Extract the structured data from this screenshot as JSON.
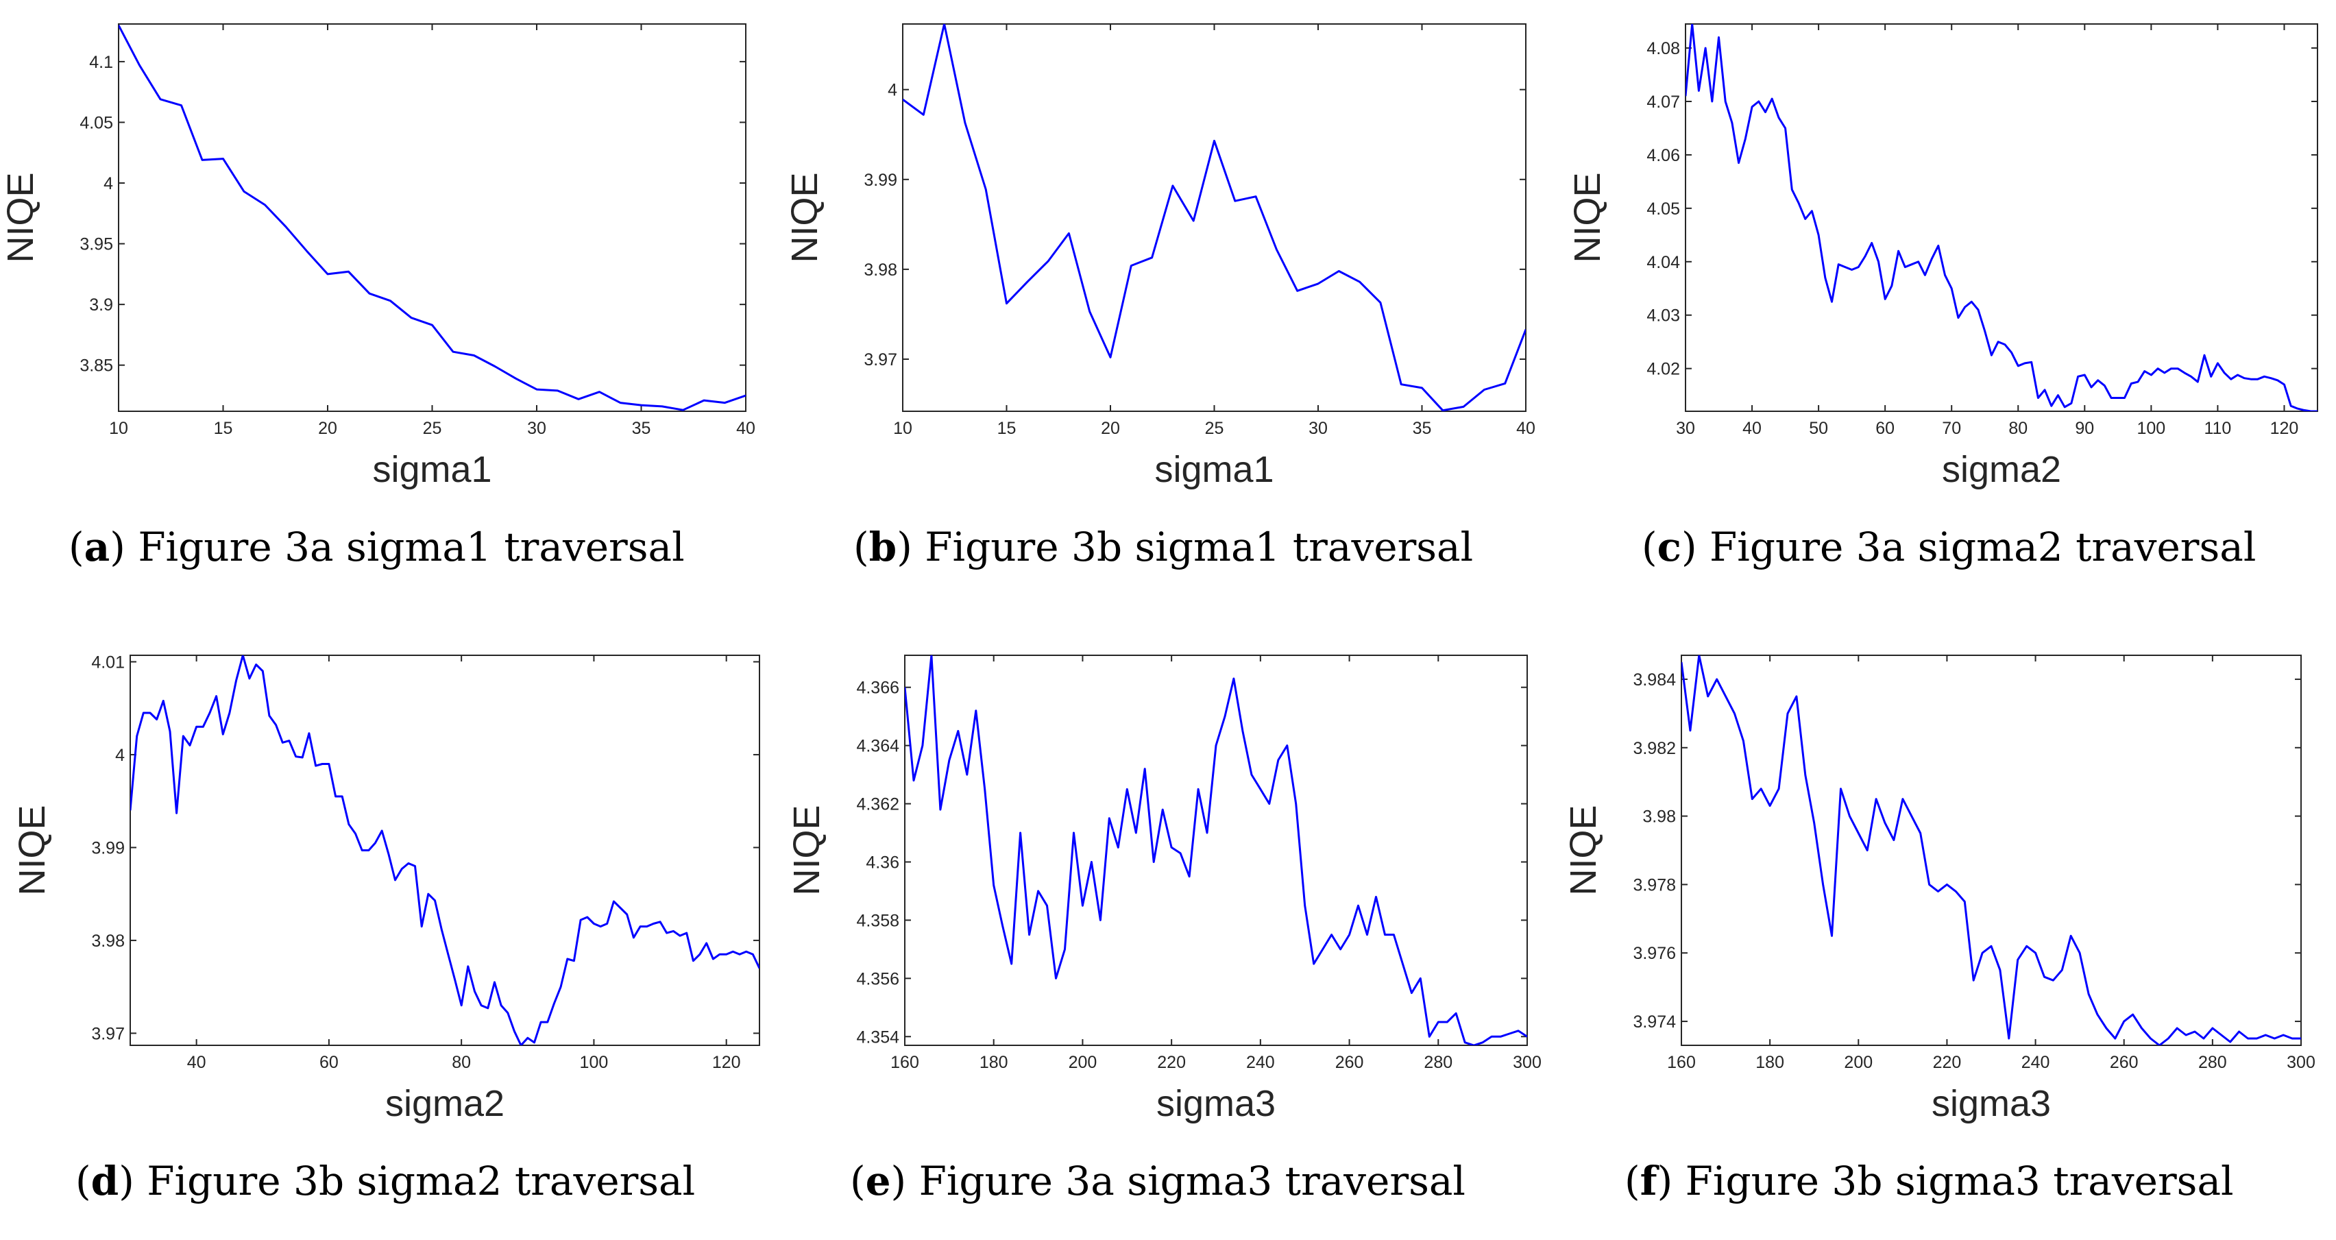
{
  "chart_data": [
    {
      "type": "line",
      "id": "a",
      "caption_letter": "a",
      "caption_text": "Figure 3a sigma1 traversal",
      "xlabel": "sigma1",
      "ylabel": "NIQE",
      "xlim": [
        10,
        40
      ],
      "ylim": [
        3.812,
        4.131
      ],
      "xticks": [
        "10",
        "15",
        "20",
        "25",
        "30",
        "35",
        "40"
      ],
      "yticks": [
        "3.85",
        "3.9",
        "3.95",
        "4",
        "4.05",
        "4.1"
      ],
      "color": "#0000ff",
      "series": [
        {
          "name": "NIQE",
          "x": [
            10,
            11,
            12,
            13,
            14,
            15,
            16,
            17,
            18,
            19,
            20,
            21,
            22,
            23,
            24,
            25,
            26,
            27,
            28,
            29,
            30,
            31,
            32,
            33,
            34,
            35,
            36,
            37,
            38,
            39,
            40
          ],
          "y": [
            4.13,
            4.097,
            4.069,
            4.064,
            4.019,
            4.02,
            3.993,
            3.982,
            3.964,
            3.944,
            3.925,
            3.927,
            3.909,
            3.903,
            3.889,
            3.883,
            3.861,
            3.858,
            3.849,
            3.839,
            3.83,
            3.829,
            3.822,
            3.828,
            3.819,
            3.817,
            3.816,
            3.813,
            3.821,
            3.819,
            3.825
          ]
        }
      ]
    },
    {
      "type": "line",
      "id": "b",
      "caption_letter": "b",
      "caption_text": "Figure 3b sigma1 traversal",
      "xlabel": "sigma1",
      "ylabel": "NIQE",
      "xlim": [
        10,
        40
      ],
      "ylim": [
        3.9642,
        4.0073
      ],
      "xticks": [
        "10",
        "15",
        "20",
        "25",
        "30",
        "35",
        "40"
      ],
      "yticks": [
        "3.97",
        "3.98",
        "3.99",
        "4"
      ],
      "color": "#0000ff",
      "series": [
        {
          "name": "NIQE",
          "x": [
            10,
            11,
            12,
            13,
            14,
            15,
            16,
            17,
            18,
            19,
            20,
            21,
            22,
            23,
            24,
            25,
            26,
            27,
            28,
            29,
            30,
            31,
            32,
            33,
            34,
            35,
            36,
            37,
            38,
            39,
            40
          ],
          "y": [
            3.9989,
            3.9972,
            4.0073,
            3.9963,
            3.9889,
            3.9762,
            3.9786,
            3.9809,
            3.984,
            3.9753,
            3.9702,
            3.9804,
            3.9813,
            3.9893,
            3.9854,
            3.9943,
            3.9876,
            3.9881,
            3.9822,
            3.9776,
            3.9784,
            3.9798,
            3.9786,
            3.9763,
            3.9672,
            3.9668,
            3.9643,
            3.9647,
            3.9666,
            3.9673,
            3.9733
          ]
        }
      ]
    },
    {
      "type": "line",
      "id": "c",
      "caption_letter": "c",
      "caption_text": "Figure 3a sigma2 traversal",
      "xlabel": "sigma2",
      "ylabel": "NIQE",
      "xlim": [
        30,
        125
      ],
      "ylim": [
        4.012,
        4.0845
      ],
      "xticks": [
        "30",
        "40",
        "50",
        "60",
        "70",
        "80",
        "90",
        "100",
        "110",
        "120"
      ],
      "yticks": [
        "4.02",
        "4.03",
        "4.04",
        "4.05",
        "4.06",
        "4.07",
        "4.08"
      ],
      "color": "#0000ff",
      "series": [
        {
          "name": "NIQE",
          "x": [
            30,
            31,
            32,
            33,
            34,
            35,
            36,
            37,
            38,
            39,
            40,
            41,
            42,
            43,
            44,
            45,
            46,
            47,
            48,
            49,
            50,
            51,
            52,
            53,
            54,
            55,
            56,
            57,
            58,
            59,
            60,
            61,
            62,
            63,
            64,
            65,
            66,
            67,
            68,
            69,
            70,
            71,
            72,
            73,
            74,
            75,
            76,
            77,
            78,
            79,
            80,
            81,
            82,
            83,
            84,
            85,
            86,
            87,
            88,
            89,
            90,
            91,
            92,
            93,
            94,
            95,
            96,
            97,
            98,
            99,
            100,
            101,
            102,
            103,
            104,
            105,
            106,
            107,
            108,
            109,
            110,
            111,
            112,
            113,
            114,
            115,
            116,
            117,
            118,
            119,
            120,
            121,
            122,
            123,
            124,
            125
          ],
          "y": [
            4.071,
            4.0845,
            4.072,
            4.08,
            4.07,
            4.082,
            4.07,
            4.066,
            4.0585,
            4.063,
            4.069,
            4.07,
            4.068,
            4.0705,
            4.067,
            4.065,
            4.0535,
            4.051,
            4.048,
            4.0495,
            4.045,
            4.037,
            4.0325,
            4.0395,
            4.039,
            4.0385,
            4.039,
            4.041,
            4.0435,
            4.04,
            4.033,
            4.0355,
            4.042,
            4.039,
            4.0395,
            4.04,
            4.0375,
            4.0405,
            4.043,
            4.0375,
            4.035,
            4.0295,
            4.0315,
            4.0325,
            4.031,
            4.027,
            4.0225,
            4.025,
            4.0245,
            4.023,
            4.0205,
            4.021,
            4.0212,
            4.0145,
            4.016,
            4.013,
            4.015,
            4.0128,
            4.0135,
            4.0185,
            4.0188,
            4.0165,
            4.0178,
            4.0168,
            4.0145,
            4.0145,
            4.0145,
            4.0172,
            4.0175,
            4.0195,
            4.0188,
            4.02,
            4.0192,
            4.02,
            4.02,
            4.0192,
            4.0185,
            4.0175,
            4.0225,
            4.0185,
            4.021,
            4.0192,
            4.018,
            4.0188,
            4.0182,
            4.018,
            4.018,
            4.0185,
            4.0182,
            4.0178,
            4.017,
            4.013,
            4.0125,
            4.0122,
            4.012,
            4.012
          ]
        }
      ]
    },
    {
      "type": "line",
      "id": "d",
      "caption_letter": "d",
      "caption_text": "Figure 3b sigma2 traversal",
      "xlabel": "sigma2",
      "ylabel": "NIQE",
      "xlim": [
        30,
        125
      ],
      "ylim": [
        3.9687,
        4.0107
      ],
      "xticks": [
        "40",
        "60",
        "80",
        "100",
        "120"
      ],
      "yticks": [
        "3.97",
        "3.98",
        "3.99",
        "4",
        "4.01"
      ],
      "color": "#0000ff",
      "series": [
        {
          "name": "NIQE",
          "x": [
            30,
            31,
            32,
            33,
            34,
            35,
            36,
            37,
            38,
            39,
            40,
            41,
            42,
            43,
            44,
            45,
            46,
            47,
            48,
            49,
            50,
            51,
            52,
            53,
            54,
            55,
            56,
            57,
            58,
            59,
            60,
            61,
            62,
            63,
            64,
            65,
            66,
            67,
            68,
            69,
            70,
            71,
            72,
            73,
            74,
            75,
            76,
            77,
            78,
            79,
            80,
            81,
            82,
            83,
            84,
            85,
            86,
            87,
            88,
            89,
            90,
            91,
            92,
            93,
            94,
            95,
            96,
            97,
            98,
            99,
            100,
            101,
            102,
            103,
            104,
            105,
            106,
            107,
            108,
            109,
            110,
            111,
            112,
            113,
            114,
            115,
            116,
            117,
            118,
            119,
            120,
            121,
            122,
            123,
            124,
            125
          ],
          "y": [
            3.994,
            4.002,
            4.0045,
            4.0045,
            4.0038,
            4.0058,
            4.0025,
            3.9937,
            4.002,
            4.001,
            4.003,
            4.003,
            4.0045,
            4.0063,
            4.0022,
            4.0045,
            4.008,
            4.0107,
            4.0082,
            4.0097,
            4.009,
            4.0042,
            4.0032,
            4.0013,
            4.0015,
            3.9998,
            3.9997,
            4.0023,
            3.9988,
            3.999,
            3.999,
            3.9955,
            3.9955,
            3.9925,
            3.9915,
            3.9897,
            3.9897,
            3.9905,
            3.9918,
            3.9893,
            3.9865,
            3.9877,
            3.9883,
            3.988,
            3.9815,
            3.985,
            3.9843,
            3.9812,
            3.9785,
            3.9758,
            3.973,
            3.9772,
            3.9745,
            3.973,
            3.9727,
            3.9755,
            3.973,
            3.9722,
            3.9702,
            3.9687,
            3.9695,
            3.969,
            3.9712,
            3.9712,
            3.9732,
            3.975,
            3.978,
            3.9778,
            3.9822,
            3.9825,
            3.9818,
            3.9815,
            3.9818,
            3.9842,
            3.9835,
            3.9828,
            3.9803,
            3.9815,
            3.9815,
            3.9818,
            3.982,
            3.9808,
            3.981,
            3.9805,
            3.9808,
            3.9778,
            3.9785,
            3.9797,
            3.978,
            3.9785,
            3.9785,
            3.9788,
            3.9785,
            3.9788,
            3.9785,
            3.977
          ]
        }
      ]
    },
    {
      "type": "line",
      "id": "e",
      "caption_letter": "e",
      "caption_text": "Figure 3a sigma3 traversal",
      "xlabel": "sigma3",
      "ylabel": "NIQE",
      "xlim": [
        160,
        300
      ],
      "ylim": [
        4.3537,
        4.3671
      ],
      "xticks": [
        "160",
        "180",
        "200",
        "220",
        "240",
        "260",
        "280",
        "300"
      ],
      "yticks": [
        "4.354",
        "4.356",
        "4.358",
        "4.36",
        "4.362",
        "4.364",
        "4.366"
      ],
      "color": "#0000ff",
      "series": [
        {
          "name": "NIQE",
          "x": [
            160,
            162,
            164,
            166,
            168,
            170,
            172,
            174,
            176,
            178,
            180,
            182,
            184,
            186,
            188,
            190,
            192,
            194,
            196,
            198,
            200,
            202,
            204,
            206,
            208,
            210,
            212,
            214,
            216,
            218,
            220,
            222,
            224,
            226,
            228,
            230,
            232,
            234,
            236,
            238,
            240,
            242,
            244,
            246,
            248,
            250,
            252,
            254,
            256,
            258,
            260,
            262,
            264,
            266,
            268,
            270,
            272,
            274,
            276,
            278,
            280,
            282,
            284,
            286,
            288,
            290,
            292,
            294,
            296,
            298,
            300
          ],
          "y": [
            4.366,
            4.3628,
            4.364,
            4.3671,
            4.3618,
            4.3635,
            4.3645,
            4.363,
            4.3652,
            4.3625,
            4.3592,
            4.3578,
            4.3565,
            4.361,
            4.3575,
            4.359,
            4.3585,
            4.356,
            4.357,
            4.361,
            4.3585,
            4.36,
            4.358,
            4.3615,
            4.3605,
            4.3625,
            4.361,
            4.3632,
            4.36,
            4.3618,
            4.3605,
            4.3603,
            4.3595,
            4.3625,
            4.361,
            4.364,
            4.365,
            4.3663,
            4.3645,
            4.363,
            4.3625,
            4.362,
            4.3635,
            4.364,
            4.362,
            4.3585,
            4.3565,
            4.357,
            4.3575,
            4.357,
            4.3575,
            4.3585,
            4.3575,
            4.3588,
            4.3575,
            4.3575,
            4.3565,
            4.3555,
            4.356,
            4.354,
            4.3545,
            4.3545,
            4.3548,
            4.3538,
            4.3537,
            4.3538,
            4.354,
            4.354,
            4.3541,
            4.3542,
            4.354
          ]
        }
      ]
    },
    {
      "type": "line",
      "id": "f",
      "caption_letter": "f",
      "caption_text": "Figure 3b sigma3 traversal",
      "xlabel": "sigma3",
      "ylabel": "NIQE",
      "xlim": [
        160,
        300
      ],
      "ylim": [
        3.9733,
        3.9847
      ],
      "xticks": [
        "160",
        "180",
        "200",
        "220",
        "240",
        "260",
        "280",
        "300"
      ],
      "yticks": [
        "3.974",
        "3.976",
        "3.978",
        "3.98",
        "3.982",
        "3.984"
      ],
      "color": "#0000ff",
      "series": [
        {
          "name": "NIQE",
          "x": [
            160,
            162,
            164,
            166,
            168,
            170,
            172,
            174,
            176,
            178,
            180,
            182,
            184,
            186,
            188,
            190,
            192,
            194,
            196,
            198,
            200,
            202,
            204,
            206,
            208,
            210,
            212,
            214,
            216,
            218,
            220,
            222,
            224,
            226,
            228,
            230,
            232,
            234,
            236,
            238,
            240,
            242,
            244,
            246,
            248,
            250,
            252,
            254,
            256,
            258,
            260,
            262,
            264,
            266,
            268,
            270,
            272,
            274,
            276,
            278,
            280,
            282,
            284,
            286,
            288,
            290,
            292,
            294,
            296,
            298,
            300
          ],
          "y": [
            3.9845,
            3.9825,
            3.9847,
            3.9835,
            3.984,
            3.9835,
            3.983,
            3.9822,
            3.9805,
            3.9808,
            3.9803,
            3.9808,
            3.983,
            3.9835,
            3.9812,
            3.9798,
            3.978,
            3.9765,
            3.9808,
            3.98,
            3.9795,
            3.979,
            3.9805,
            3.9798,
            3.9793,
            3.9805,
            3.98,
            3.9795,
            3.978,
            3.9778,
            3.978,
            3.9778,
            3.9775,
            3.9752,
            3.976,
            3.9762,
            3.9755,
            3.9735,
            3.9758,
            3.9762,
            3.976,
            3.9753,
            3.9752,
            3.9755,
            3.9765,
            3.976,
            3.9748,
            3.9742,
            3.9738,
            3.9735,
            3.974,
            3.9742,
            3.9738,
            3.9735,
            3.9733,
            3.9735,
            3.9738,
            3.9736,
            3.9737,
            3.9735,
            3.9738,
            3.9736,
            3.9734,
            3.9737,
            3.9735,
            3.9735,
            3.9736,
            3.9735,
            3.9736,
            3.9735,
            3.9735
          ]
        }
      ]
    }
  ]
}
